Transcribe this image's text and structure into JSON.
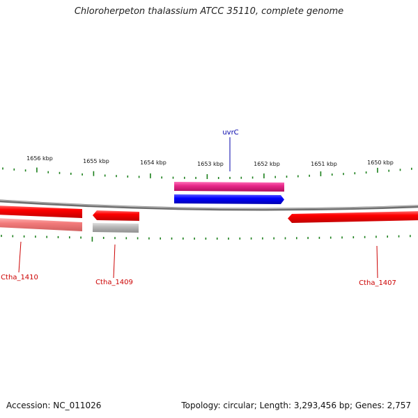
{
  "title": "Chloroherpeton thalassium ATCC 35110, complete genome",
  "footer": {
    "accession": "Accession: NC_011026",
    "summary": "Topology: circular; Length: 3,293,456 bp; Genes: 2,757"
  },
  "colors": {
    "tick": "#1a7f1a",
    "backbone": "#808080",
    "cds_red": "#ff0000",
    "cds_pink": "#ff8080",
    "cds_gray": "#b0b0b0",
    "cds_magenta": "#e8288a",
    "cds_blue": "#0000ff",
    "label_red": "#cc0000",
    "label_blue": "#0000aa"
  },
  "axis": {
    "unit": "kbp",
    "labels": [
      "1656 kbp",
      "1655 kbp",
      "1654 kbp",
      "1653 kbp",
      "1652 kbp",
      "1651 kbp",
      "1650 kbp"
    ]
  },
  "genes": [
    {
      "name": "uvrC",
      "color": "blue"
    },
    {
      "name": "Ctha_1410",
      "color": "red"
    },
    {
      "name": "Ctha_1409",
      "color": "red"
    },
    {
      "name": "Ctha_1407",
      "color": "red"
    }
  ]
}
